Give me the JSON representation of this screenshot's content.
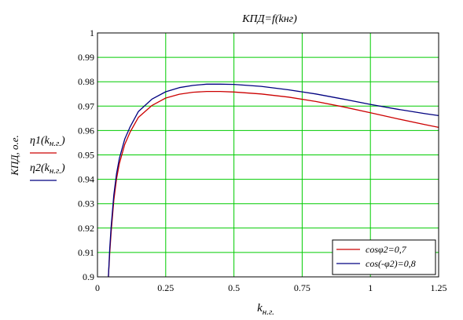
{
  "chart_data": {
    "type": "line",
    "title": "КПД=f(kнг)",
    "xlabel": "kн.г.",
    "xlabel_main": "k",
    "xlabel_sub": "н.г.",
    "ylabel": "КПД, о.е.",
    "xlim": [
      0,
      1.25
    ],
    "ylim": [
      0.9,
      1.0
    ],
    "grid": true,
    "grid_color": "#00cc00",
    "xticks": [
      "0",
      "0.25",
      "0.5",
      "0.75",
      "1",
      "1.25"
    ],
    "yticks": [
      "0.9",
      "0.91",
      "0.92",
      "0.93",
      "0.94",
      "0.95",
      "0.96",
      "0.97",
      "0.98",
      "0.99",
      "1"
    ],
    "y_trace_labels": [
      {
        "main": "η1(k",
        "sub": "н.г.",
        "close": ")",
        "color": "#cc0000"
      },
      {
        "main": "η2(k",
        "sub": "н.г.",
        "close": ")",
        "color": "#000080"
      }
    ],
    "legend_position": "bottom-right",
    "legend": [
      "cosφ2=0,7",
      "cos(-φ2)=0,8"
    ],
    "series": [
      {
        "name": "cosφ2=0,7",
        "color": "#cc0000",
        "x": [
          0.04,
          0.045,
          0.05,
          0.06,
          0.07,
          0.08,
          0.1,
          0.12,
          0.15,
          0.2,
          0.25,
          0.3,
          0.35,
          0.4,
          0.45,
          0.5,
          0.6,
          0.7,
          0.8,
          0.9,
          1.0,
          1.1,
          1.2,
          1.25
        ],
        "y": [
          0.9,
          0.9098,
          0.9183,
          0.9314,
          0.9403,
          0.9464,
          0.9543,
          0.9595,
          0.9654,
          0.9703,
          0.9733,
          0.9749,
          0.9757,
          0.976,
          0.976,
          0.9758,
          0.975,
          0.9737,
          0.9719,
          0.9697,
          0.9673,
          0.9648,
          0.9624,
          0.9613
        ]
      },
      {
        "name": "cos(-φ2)=0,8",
        "color": "#000080",
        "x": [
          0.04,
          0.045,
          0.05,
          0.06,
          0.07,
          0.08,
          0.1,
          0.12,
          0.15,
          0.2,
          0.25,
          0.3,
          0.35,
          0.4,
          0.45,
          0.5,
          0.6,
          0.7,
          0.8,
          0.9,
          1.0,
          1.1,
          1.2,
          1.25
        ],
        "y": [
          0.9,
          0.9116,
          0.9206,
          0.9336,
          0.9424,
          0.9485,
          0.9565,
          0.9616,
          0.9678,
          0.9729,
          0.9759,
          0.9776,
          0.9785,
          0.979,
          0.979,
          0.9789,
          0.9781,
          0.9767,
          0.975,
          0.9729,
          0.9707,
          0.9687,
          0.9669,
          0.9661
        ]
      }
    ]
  }
}
